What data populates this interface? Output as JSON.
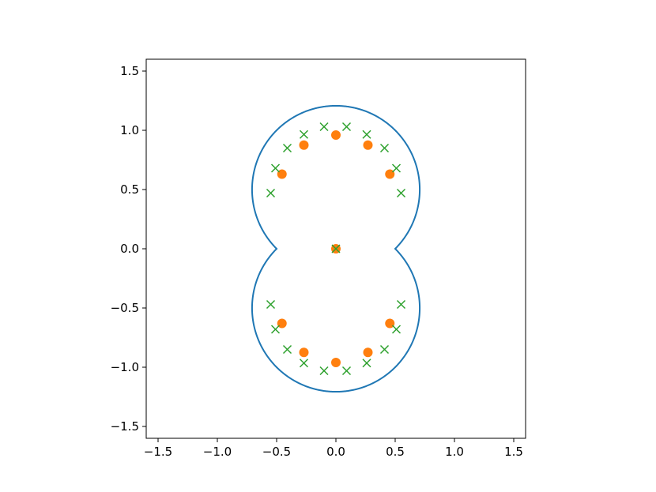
{
  "chart_data": {
    "type": "scatter",
    "xlim": [
      -1.6,
      1.6
    ],
    "ylim": [
      -1.6,
      1.6
    ],
    "grid": false,
    "legend": "none",
    "x_ticks": [
      -1.5,
      -1.0,
      -0.5,
      0.0,
      0.5,
      1.0,
      1.5
    ],
    "x_tick_labels": [
      "−1.5",
      "−1.0",
      "−0.5",
      "0.0",
      "0.5",
      "1.0",
      "1.5"
    ],
    "y_ticks": [
      -1.5,
      -1.0,
      -0.5,
      0.0,
      0.5,
      1.0,
      1.5
    ],
    "y_tick_labels": [
      "−1.5",
      "−1.0",
      "−0.5",
      "0.0",
      "0.5",
      "1.0",
      "1.5"
    ],
    "series": [
      {
        "type": "line",
        "color": "#1f77b4",
        "curve": "union of two circles",
        "centers": [
          [
            0.0,
            0.5
          ],
          [
            0.0,
            -0.5
          ]
        ],
        "radius": 0.7071
      },
      {
        "type": "scatter",
        "marker": "circle",
        "color": "#ff7f0e",
        "x": [
          0.0,
          0.0,
          0.27,
          -0.27,
          0.455,
          -0.455,
          0.0,
          0.27,
          -0.27,
          0.455,
          -0.455
        ],
        "y": [
          0.0,
          0.96,
          0.875,
          0.875,
          0.63,
          0.63,
          -0.96,
          -0.875,
          -0.875,
          -0.63,
          -0.63
        ]
      },
      {
        "type": "scatter",
        "marker": "x",
        "color": "#2ca02c",
        "x": [
          0.0,
          -0.1,
          0.09,
          0.26,
          0.41,
          0.51,
          0.55,
          -0.27,
          -0.41,
          -0.51,
          -0.55,
          -0.1,
          0.09,
          0.26,
          0.41,
          0.51,
          0.55,
          -0.27,
          -0.41,
          -0.51,
          -0.55
        ],
        "y": [
          0.0,
          1.03,
          1.03,
          0.965,
          0.85,
          0.68,
          0.47,
          0.965,
          0.85,
          0.68,
          0.47,
          -1.03,
          -1.03,
          -0.965,
          -0.85,
          -0.68,
          -0.47,
          -0.965,
          -0.85,
          -0.68,
          -0.47
        ]
      }
    ]
  }
}
